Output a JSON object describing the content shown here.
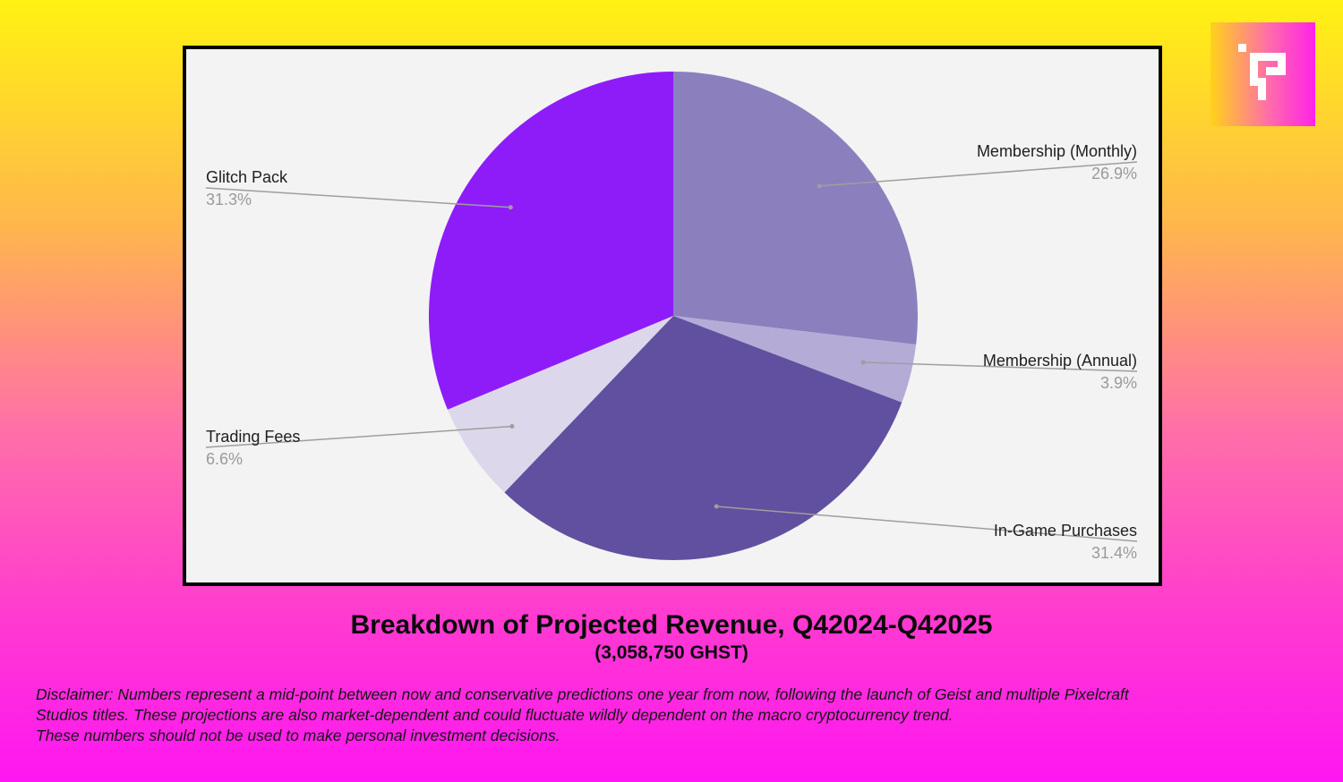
{
  "chart_data": {
    "type": "pie",
    "start_angle_deg": 0,
    "direction": "clockwise",
    "slices": [
      {
        "label": "Membership (Monthly)",
        "value": 26.9,
        "value_label": "26.9%",
        "color": "#8b80bd"
      },
      {
        "label": "Membership (Annual)",
        "value": 3.9,
        "value_label": "3.9%",
        "color": "#b4acd7"
      },
      {
        "label": "In-Game Purchases",
        "value": 31.4,
        "value_label": "31.4%",
        "color": "#61509f"
      },
      {
        "label": "Trading Fees",
        "value": 6.6,
        "value_label": "6.6%",
        "color": "#dcd7ea"
      },
      {
        "label": "Glitch Pack",
        "value": 31.3,
        "value_label": "31.3%",
        "color": "#8e1cf8"
      }
    ],
    "background_color": "#f3f3f3",
    "leader_line_color": "#9e9e9e"
  },
  "caption": {
    "title": "Breakdown of Projected Revenue, Q42024-Q42025",
    "subtitle": "(3,058,750 GHST)"
  },
  "disclaimer": {
    "lines": [
      "Disclaimer: Numbers represent a mid-point between now and conservative predictions one year from now, following the launch of Geist and multiple Pixelcraft",
      "Studios titles. These projections are also market-dependent and could fluctuate wildly dependent on the macro cryptocurrency trend.",
      "These numbers should not be used to make personal investment decisions."
    ]
  },
  "logo": {
    "icon": "pixelcraft-logo-icon"
  }
}
